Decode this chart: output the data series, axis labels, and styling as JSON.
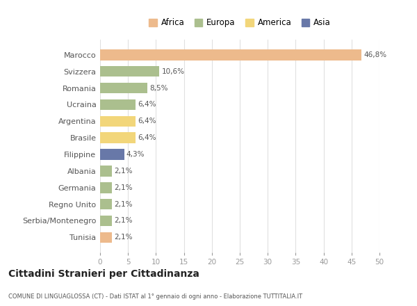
{
  "countries": [
    "Marocco",
    "Svizzera",
    "Romania",
    "Ucraina",
    "Argentina",
    "Brasile",
    "Filippine",
    "Albania",
    "Germania",
    "Regno Unito",
    "Serbia/Montenegro",
    "Tunisia"
  ],
  "values": [
    46.8,
    10.6,
    8.5,
    6.4,
    6.4,
    6.4,
    4.3,
    2.1,
    2.1,
    2.1,
    2.1,
    2.1
  ],
  "labels": [
    "46,8%",
    "10,6%",
    "8,5%",
    "6,4%",
    "6,4%",
    "6,4%",
    "4,3%",
    "2,1%",
    "2,1%",
    "2,1%",
    "2,1%",
    "2,1%"
  ],
  "colors": [
    "#EDBA8C",
    "#ABBF8E",
    "#ABBF8E",
    "#ABBF8E",
    "#F2D67A",
    "#F2D67A",
    "#6878A8",
    "#ABBF8E",
    "#ABBF8E",
    "#ABBF8E",
    "#ABBF8E",
    "#EDBA8C"
  ],
  "legend_labels": [
    "Africa",
    "Europa",
    "America",
    "Asia"
  ],
  "legend_colors": [
    "#EDBA8C",
    "#ABBF8E",
    "#F2D67A",
    "#6878A8"
  ],
  "title": "Cittadini Stranieri per Cittadinanza",
  "subtitle": "COMUNE DI LINGUAGLOSSA (CT) - Dati ISTAT al 1° gennaio di ogni anno - Elaborazione TUTTITALIA.IT",
  "xlim": [
    0,
    50
  ],
  "xticks": [
    0,
    5,
    10,
    15,
    20,
    25,
    30,
    35,
    40,
    45,
    50
  ],
  "bg_color": "#ffffff",
  "bar_height": 0.65
}
